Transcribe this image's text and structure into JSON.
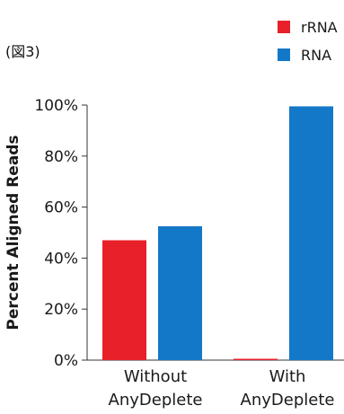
{
  "figure_label": "(図3)",
  "colors": {
    "rRNA": "#e8202a",
    "RNA": "#1478c8",
    "axis": "#333333",
    "text": "#1a1a1a"
  },
  "chart_data": {
    "type": "bar",
    "title": "",
    "xlabel": "",
    "ylabel": "Percent Aligned Reads",
    "ylim": [
      0,
      100
    ],
    "yticks": [
      0,
      20,
      40,
      60,
      80,
      100
    ],
    "ytick_labels": [
      "0%",
      "20%",
      "40%",
      "60%",
      "80%",
      "100%"
    ],
    "categories": [
      [
        "Without",
        "AnyDeplete"
      ],
      [
        "With",
        "AnyDeplete"
      ]
    ],
    "series": [
      {
        "name": "rRNA",
        "values": [
          47,
          0.5
        ]
      },
      {
        "name": "RNA",
        "values": [
          52.5,
          99.5
        ]
      }
    ],
    "legend_position": "top-right",
    "grid": false
  }
}
